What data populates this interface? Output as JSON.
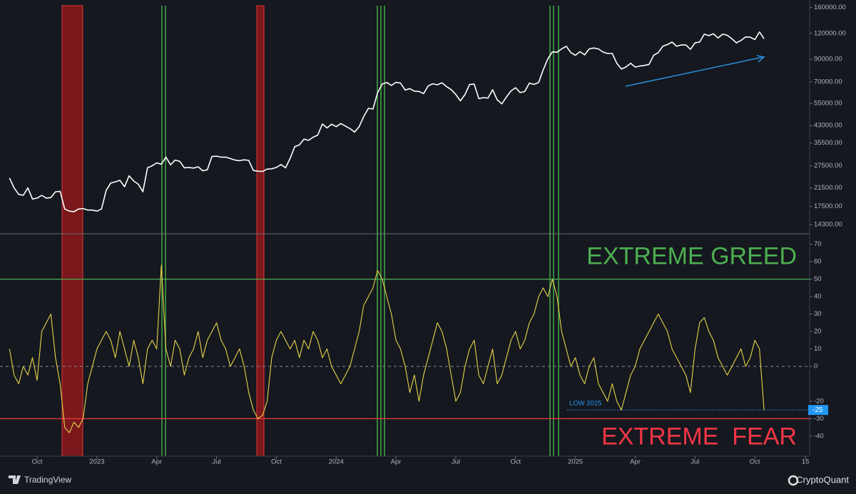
{
  "chart_data": {
    "type": "line",
    "categories": [
      null,
      null,
      null,
      null,
      null,
      null,
      "Oct",
      null,
      null,
      null,
      null,
      null,
      null,
      null,
      null,
      null,
      null,
      null,
      null,
      "2023",
      null,
      null,
      null,
      null,
      null,
      null,
      null,
      null,
      null,
      null,
      null,
      null,
      "Apr",
      null,
      null,
      null,
      null,
      null,
      null,
      null,
      null,
      null,
      null,
      null,
      null,
      "Jul",
      null,
      null,
      null,
      null,
      null,
      null,
      null,
      null,
      null,
      null,
      null,
      null,
      "Oct",
      null,
      null,
      null,
      null,
      null,
      null,
      null,
      null,
      null,
      null,
      null,
      null,
      "2024",
      null,
      null,
      null,
      null,
      null,
      null,
      null,
      null,
      null,
      null,
      null,
      null,
      "Apr",
      null,
      null,
      null,
      null,
      null,
      null,
      null,
      null,
      null,
      null,
      null,
      null,
      "Jul",
      null,
      null,
      null,
      null,
      null,
      null,
      null,
      null,
      null,
      null,
      null,
      null,
      "Oct",
      null,
      null,
      null,
      null,
      null,
      null,
      null,
      null,
      null,
      null,
      null,
      null,
      "2025",
      null,
      null,
      null,
      null,
      null,
      null,
      null,
      null,
      null,
      null,
      null,
      null,
      "Apr",
      null,
      null,
      null,
      null,
      null,
      null,
      null,
      null,
      null,
      null,
      null,
      null,
      "Jul",
      null,
      null,
      null,
      null,
      null,
      null,
      null,
      null,
      null,
      null,
      null,
      null,
      "Oct",
      null,
      null,
      null,
      null,
      null,
      null,
      null,
      null,
      null,
      null,
      "15"
    ],
    "series": [
      {
        "color": "#ffffff",
        "axis": "y",
        "values": [
          24000,
          21500,
          20000,
          19800,
          21500,
          19000,
          19200,
          19800,
          19200,
          19300,
          20600,
          20700,
          17000,
          16600,
          16500,
          17000,
          17100,
          16800,
          16800,
          16600,
          17000,
          20900,
          22700,
          23000,
          23400,
          21800,
          24600,
          23200,
          22400,
          20600,
          26900,
          27500,
          28400,
          28000,
          30300,
          27800,
          29300,
          28900,
          26900,
          27000,
          26800,
          27200,
          26000,
          26300,
          30500,
          30600,
          30300,
          30300,
          29800,
          29300,
          29100,
          29400,
          29200,
          26100,
          25900,
          25800,
          26500,
          26600,
          27000,
          27900,
          26900,
          29900,
          34000,
          34700,
          37000,
          36500,
          37800,
          38700,
          43800,
          41900,
          43700,
          42500,
          44000,
          42800,
          41600,
          40000,
          42500,
          47600,
          52100,
          51700,
          62000,
          68300,
          69500,
          67200,
          69600,
          69000,
          63900,
          64900,
          63100,
          62900,
          61400,
          66900,
          68500,
          67700,
          69300,
          66300,
          64200,
          60800,
          56700,
          60800,
          68000,
          68200,
          58100,
          58700,
          58400,
          64100,
          57300,
          54800,
          59100,
          63300,
          65600,
          62100,
          62900,
          69000,
          68000,
          69500,
          80000,
          90500,
          97700,
          97300,
          101000,
          104000,
          97000,
          94000,
          98000,
          94500,
          101000,
          102000,
          101000,
          97500,
          96000,
          96000,
          86000,
          80700,
          82600,
          86000,
          82500,
          83500,
          84000,
          85000,
          94000,
          96900,
          104000,
          106000,
          109000,
          104000,
          105500,
          105500,
          100500,
          108000,
          109000,
          119000,
          117000,
          119500,
          114000,
          119000,
          117500,
          113000,
          108000,
          111000,
          115500,
          115000,
          112000,
          122000,
          113000,
          null,
          null,
          null,
          null,
          null,
          null,
          null,
          null,
          null
        ]
      },
      {
        "color": "#e6d34a",
        "axis": "y2",
        "values": [
          10,
          -5,
          -10,
          0,
          -5,
          5,
          -8,
          20,
          25,
          30,
          5,
          -10,
          -35,
          -38,
          -32,
          -35,
          -30,
          -10,
          0,
          10,
          15,
          20,
          15,
          5,
          20,
          10,
          0,
          15,
          5,
          -10,
          10,
          15,
          10,
          58,
          10,
          0,
          15,
          10,
          -5,
          5,
          10,
          20,
          5,
          15,
          20,
          25,
          15,
          10,
          0,
          5,
          10,
          0,
          -15,
          -25,
          -30,
          -28,
          -20,
          5,
          15,
          20,
          15,
          10,
          15,
          5,
          15,
          10,
          20,
          15,
          5,
          10,
          0,
          -5,
          -10,
          -5,
          0,
          10,
          20,
          35,
          40,
          45,
          55,
          50,
          40,
          30,
          15,
          10,
          0,
          -15,
          -5,
          -20,
          -5,
          5,
          15,
          25,
          20,
          10,
          -5,
          -20,
          -15,
          0,
          10,
          15,
          -5,
          -10,
          0,
          10,
          -10,
          -5,
          5,
          15,
          20,
          10,
          15,
          25,
          30,
          40,
          45,
          40,
          50,
          40,
          20,
          10,
          0,
          5,
          -5,
          -10,
          0,
          5,
          -10,
          -15,
          -20,
          -10,
          -20,
          -25,
          -15,
          -5,
          0,
          10,
          15,
          20,
          25,
          30,
          25,
          20,
          10,
          5,
          0,
          -5,
          -15,
          10,
          25,
          28,
          20,
          15,
          5,
          0,
          -5,
          0,
          5,
          10,
          0,
          5,
          15,
          10,
          -25,
          null,
          null,
          null,
          null,
          null,
          null,
          null,
          null,
          null
        ]
      }
    ],
    "ylog": true,
    "ylim": [
      12900,
      174000
    ],
    "yticks": [
      {
        "value": 160000,
        "label": "160000.00"
      },
      {
        "value": 120000,
        "label": "120000.00"
      },
      {
        "value": 90000,
        "label": "90000.00"
      },
      {
        "value": 70000,
        "label": "70000.00"
      },
      {
        "value": 55000,
        "label": "55000.00"
      },
      {
        "value": 43000,
        "label": "43000.00"
      },
      {
        "value": 35500,
        "label": "35500.00"
      },
      {
        "value": 27500,
        "label": "27500.00"
      },
      {
        "value": 21500,
        "label": "21500.00"
      },
      {
        "value": 17500,
        "label": "17500.00"
      },
      {
        "value": 14300,
        "label": "14300.00"
      }
    ],
    "y2lim": [
      -51.5,
      76
    ],
    "y2ticks": [
      70,
      60,
      50,
      40,
      30,
      20,
      10,
      0,
      -20,
      -30,
      -40
    ],
    "levels": [
      {
        "label": "EXTREME GREED",
        "value": 50,
        "color": "#4caf50"
      },
      {
        "label": "EXTREME  FEAR",
        "value": -30,
        "color": "#f23645"
      }
    ],
    "low": {
      "label": "LOW 2025",
      "value": -25,
      "color": "#2196f3"
    }
  },
  "footer": {
    "left": "TradingView",
    "right": "CryptoQuant"
  }
}
